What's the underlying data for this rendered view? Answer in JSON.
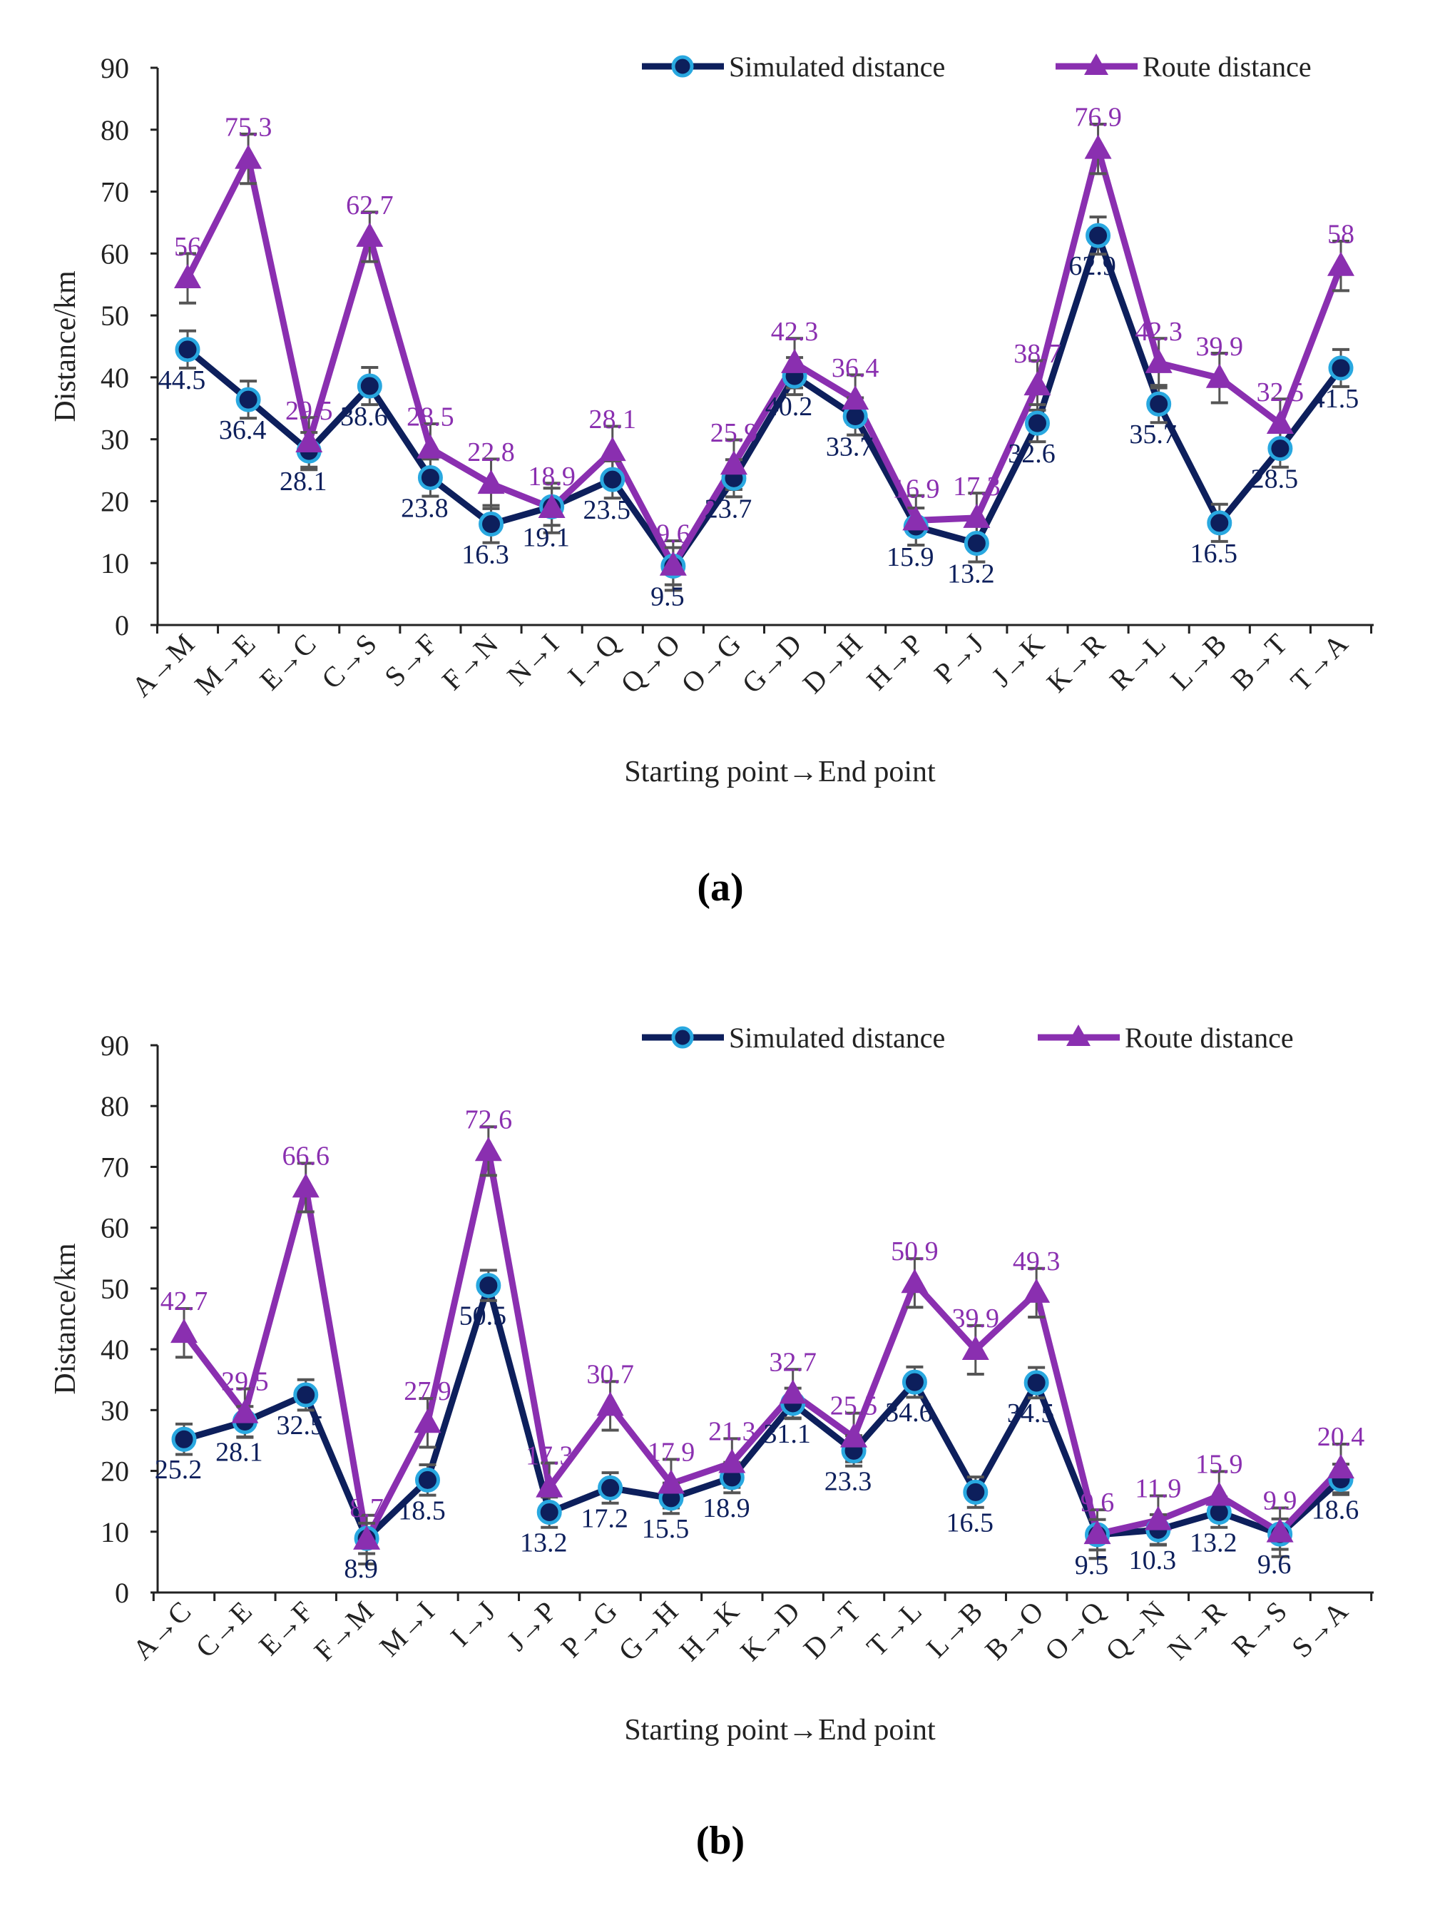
{
  "colors": {
    "simulated": "#0d1f5c",
    "simulated_marker_edge": "#29a8e0",
    "route": "#8a2fb0",
    "error": "#555555",
    "axis": "#222222"
  },
  "chart_data": [
    {
      "panel_label": "(a)",
      "panel_letter": "a",
      "type": "line",
      "xlabel": "Starting point→End point",
      "ylabel": "Distance/km",
      "ylim": [
        0,
        90
      ],
      "yticks": [
        0,
        10,
        20,
        30,
        40,
        50,
        60,
        70,
        80,
        90
      ],
      "legend_position": "top-right",
      "categories": [
        "A→M",
        "M→E",
        "E→C",
        "C→S",
        "S→F",
        "F→N",
        "N→I",
        "I→Q",
        "Q→O",
        "O→G",
        "G→D",
        "D→H",
        "H→P",
        "P→J",
        "J→K",
        "K→R",
        "R→L",
        "L→B",
        "B→T",
        "T→A"
      ],
      "series": [
        {
          "name": "Simulated distance",
          "marker": "circle",
          "error": 3,
          "values": [
            44.5,
            36.4,
            28.1,
            38.6,
            23.8,
            16.3,
            19.1,
            23.5,
            9.5,
            23.7,
            40.2,
            33.7,
            15.9,
            13.2,
            32.6,
            62.9,
            35.7,
            16.5,
            28.5,
            41.5
          ]
        },
        {
          "name": "Route distance",
          "marker": "triangle",
          "error": 4,
          "values": [
            56,
            75.3,
            29.5,
            62.7,
            28.5,
            22.8,
            18.9,
            28.1,
            9.6,
            25.9,
            42.3,
            36.4,
            16.9,
            17.3,
            38.7,
            76.9,
            42.3,
            39.9,
            32.5,
            58
          ]
        }
      ]
    },
    {
      "panel_label": "(b)",
      "panel_letter": "b",
      "type": "line",
      "xlabel": "Starting point→End point",
      "ylabel": "Distance/km",
      "ylim": [
        0,
        90
      ],
      "yticks": [
        0,
        10,
        20,
        30,
        40,
        50,
        60,
        70,
        80,
        90
      ],
      "legend_position": "top-right",
      "categories": [
        "A→C",
        "C→E",
        "E→F",
        "F→M",
        "M→I",
        "I→J",
        "J→P",
        "P→G",
        "G→H",
        "H→K",
        "K→D",
        "D→T",
        "T→L",
        "L→B",
        "B→O",
        "O→Q",
        "Q→N",
        "N→R",
        "R→S",
        "S→A"
      ],
      "series": [
        {
          "name": "Simulated distance",
          "marker": "circle",
          "error": 2.5,
          "values": [
            25.2,
            28.1,
            32.5,
            8.9,
            18.5,
            50.5,
            13.2,
            17.2,
            15.5,
            18.9,
            31.1,
            23.3,
            34.6,
            16.5,
            34.5,
            9.5,
            10.3,
            13.2,
            9.6,
            18.6
          ]
        },
        {
          "name": "Route distance",
          "marker": "triangle",
          "error": 4,
          "values": [
            42.7,
            29.5,
            66.6,
            8.7,
            27.9,
            72.6,
            17.3,
            30.7,
            17.9,
            21.3,
            32.7,
            25.5,
            50.9,
            39.9,
            49.3,
            9.6,
            11.9,
            15.9,
            9.9,
            20.4
          ]
        }
      ]
    }
  ]
}
